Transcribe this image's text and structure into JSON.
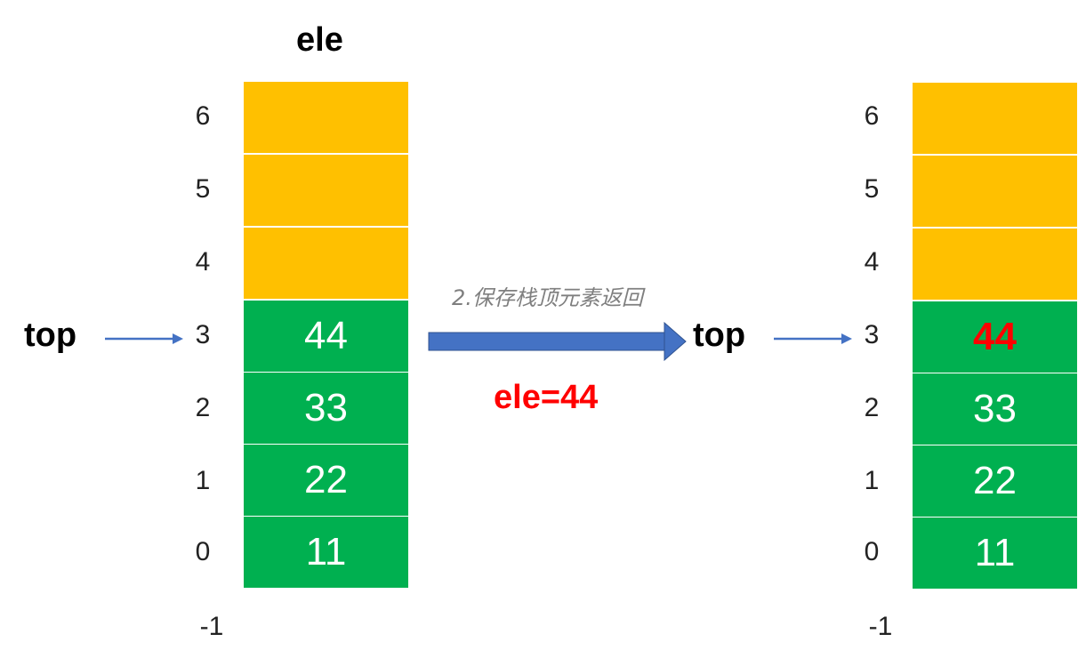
{
  "left": {
    "title": "ele",
    "top_label": "top",
    "indices": [
      "6",
      "5",
      "4",
      "3",
      "2",
      "1",
      "0",
      "-1"
    ],
    "cells": [
      {
        "index": "6",
        "value": "",
        "filled": false
      },
      {
        "index": "5",
        "value": "",
        "filled": false
      },
      {
        "index": "4",
        "value": "",
        "filled": false
      },
      {
        "index": "3",
        "value": "44",
        "filled": true
      },
      {
        "index": "2",
        "value": "33",
        "filled": true
      },
      {
        "index": "1",
        "value": "22",
        "filled": true
      },
      {
        "index": "0",
        "value": "11",
        "filled": true
      }
    ]
  },
  "transition": {
    "caption": "2.保存栈顶元素返回",
    "result": "ele=44"
  },
  "right": {
    "top_label": "top",
    "indices": [
      "6",
      "5",
      "4",
      "3",
      "2",
      "1",
      "0",
      "-1"
    ],
    "cells": [
      {
        "index": "6",
        "value": "",
        "filled": false
      },
      {
        "index": "5",
        "value": "",
        "filled": false
      },
      {
        "index": "4",
        "value": "",
        "filled": false
      },
      {
        "index": "3",
        "value": "44",
        "filled": true,
        "highlight": true
      },
      {
        "index": "2",
        "value": "33",
        "filled": true
      },
      {
        "index": "1",
        "value": "22",
        "filled": true
      },
      {
        "index": "0",
        "value": "11",
        "filled": true
      }
    ]
  },
  "colors": {
    "empty_cell": "#FFC000",
    "filled_cell": "#00B050",
    "highlight_text": "#FF0000",
    "arrow": "#4472C4"
  },
  "icons": [
    "arrow-right-icon",
    "big-arrow-right-icon"
  ]
}
